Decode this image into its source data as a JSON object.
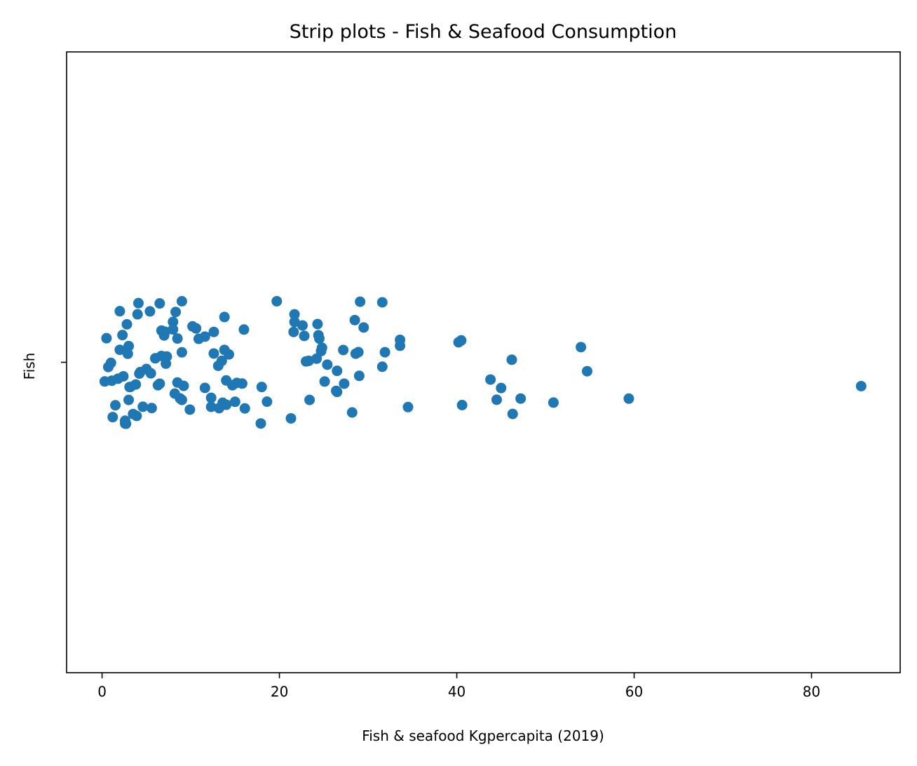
{
  "chart_data": {
    "type": "scatter",
    "subtype": "strip",
    "title": "Strip plots - Fish & Seafood Consumption",
    "xlabel": "Fish & seafood Kgpercapita (2019)",
    "ylabel": "Fish",
    "xlim": [
      -4,
      90
    ],
    "x_ticks": [
      0,
      20,
      40,
      60,
      80
    ],
    "y_category": "Fish",
    "grid": false,
    "legend": "none",
    "color": "#1f77b4",
    "series": [
      {
        "values": [
          0.3,
          0.5,
          1.8,
          2.6,
          3.8,
          6.5,
          8.0,
          9.9,
          11.6,
          13.6,
          26.5,
          40.2,
          47.2,
          2.8,
          4.3,
          8.0,
          10.2,
          12.3,
          13.2,
          14.0,
          21.7,
          24.2,
          26.4,
          33.6,
          2.3,
          3.0,
          3.5,
          5.6,
          9.0,
          12.6,
          15.0,
          21.7,
          28.5,
          33.6,
          54.0,
          1.0,
          2.6,
          6.0,
          8.2,
          10.6,
          14.3,
          16.1,
          18.6,
          24.5,
          31.6,
          40.6,
          3.1,
          4.0,
          5.5,
          8.3,
          9.2,
          13.8,
          18.0,
          21.6,
          24.8,
          27.2,
          31.9,
          1.2,
          2.9,
          6.5,
          7.1,
          13.8,
          15.2,
          19.7,
          22.8,
          24.4,
          28.9,
          29.5,
          44.5,
          46.2,
          0.7,
          1.5,
          2.4,
          3.2,
          4.1,
          5.0,
          6.7,
          7.2,
          8.5,
          11.6,
          13.5,
          21.3,
          22.6,
          25.4,
          28.2,
          29.0,
          31.6,
          43.8,
          1.1,
          2.0,
          3.0,
          6.3,
          7.0,
          8.8,
          17.9,
          23.0,
          24.3,
          26.5,
          27.3,
          34.5,
          54.7,
          85.6,
          2.0,
          3.9,
          5.4,
          6.7,
          7.3,
          9.0,
          10.9,
          12.3,
          16.0,
          23.4,
          24.7,
          28.6,
          29.1,
          40.5,
          45.0,
          50.9,
          59.4,
          2.7,
          4.2,
          4.6,
          8.5,
          9.0,
          12.6,
          13.1,
          14.0,
          14.7,
          15.8,
          23.3,
          25.1,
          46.3
        ]
      }
    ]
  }
}
